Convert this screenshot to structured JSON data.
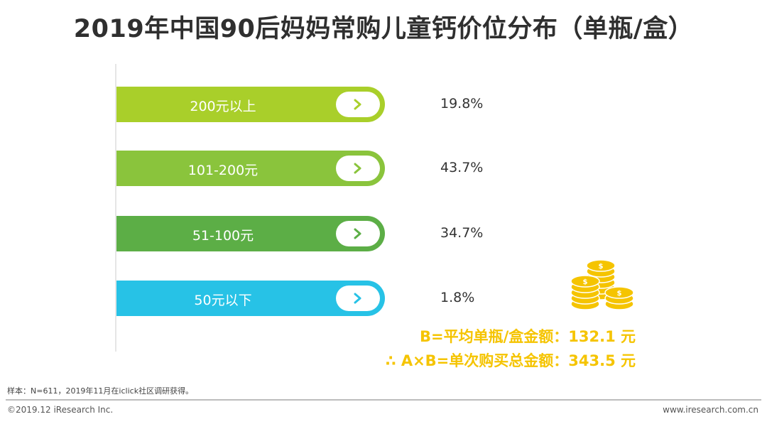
{
  "title": "2019年中国90后妈妈常购儿童钙价位分布（单瓶/盒）",
  "chart_data": {
    "type": "bar",
    "categories": [
      "200元以上",
      "101-200元",
      "51-100元",
      "50元以下"
    ],
    "values": [
      19.8,
      43.7,
      34.7,
      1.8
    ],
    "value_labels": [
      "19.8%",
      "43.7%",
      "34.7%",
      "1.8%"
    ],
    "colors": [
      "#a9cf2a",
      "#8ac43c",
      "#5cae46",
      "#27c2e6"
    ],
    "unit": "%"
  },
  "summary": {
    "b_line": "B=平均单瓶/盒金额：132.1 元",
    "ab_line": "∴ A×B=单次购买总金额：343.5 元",
    "accent_color": "#f5c400"
  },
  "footer": {
    "sample": "样本：N=611，2019年11月在iclick社区调研获得。",
    "copyright": "©2019.12 iResearch Inc.",
    "website": "www.iresearch.com.cn"
  },
  "icons": [
    "chevron-right-icon",
    "coins-icon"
  ]
}
